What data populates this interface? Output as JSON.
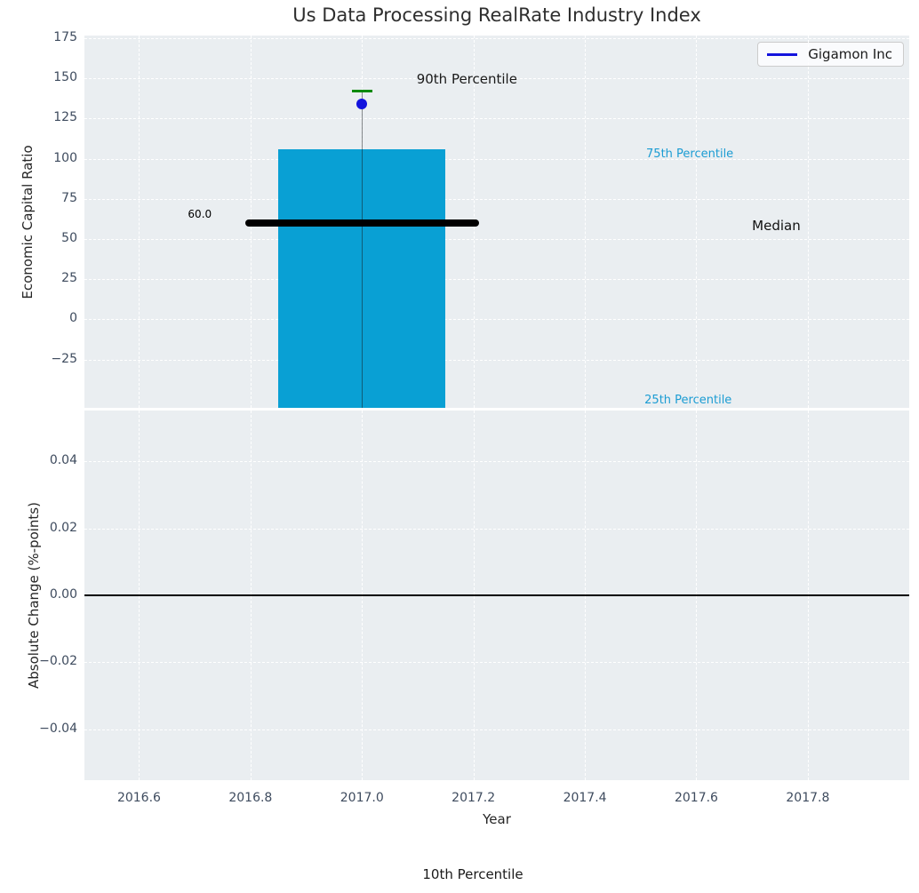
{
  "title": "Us Data Processing RealRate Industry Index",
  "caption": "10th Percentile",
  "legend": {
    "label": "Gigamon Inc",
    "line_color": "#1313dd"
  },
  "colors": {
    "axes_bg": "#eaeef1",
    "grid": "#ffffff",
    "bar": "#09a0d4",
    "percentile_label": "#1b9cd3",
    "cap_green": "#0a8a0a",
    "company_blue": "#1313dd",
    "median_line": "#000000",
    "tick": "#3e4b5e",
    "stem": "rgba(20,25,30,0.5)",
    "zero_line": "#000000"
  },
  "chart_data": {
    "type": "boxplot",
    "x": {
      "label": "Year",
      "lim": [
        2016.502,
        2017.982
      ],
      "tick_values": [
        2016.6,
        2016.8,
        2017.0,
        2017.2,
        2017.4,
        2017.6,
        2017.8
      ],
      "tick_labels": [
        "2016.6",
        "2016.8",
        "2017.0",
        "2017.2",
        "2017.4",
        "2017.6",
        "2017.8"
      ]
    },
    "top": {
      "ylabel": "Economic Capital Ratio",
      "ylim": [
        -55.1,
        176.7
      ],
      "tick_values": [
        175,
        150,
        125,
        100,
        75,
        50,
        25,
        0,
        -25
      ],
      "tick_labels": [
        "175",
        "150",
        "125",
        "100",
        "75",
        "50",
        "25",
        "0",
        "−25"
      ],
      "box": {
        "x": 2017.0,
        "bar_width": 0.3,
        "p90": 142,
        "p75": 106,
        "median": 60,
        "median_label": "60.0",
        "median_line_x": [
          2016.79,
          2017.21
        ],
        "cap_x": [
          2016.982,
          2017.018
        ],
        "p25_clipped_below_axis": true,
        "company": {
          "name": "Gigamon Inc",
          "value": 134
        }
      },
      "annotations": [
        {
          "text": "60.0",
          "x": 2016.709,
          "y": 65.5,
          "size": 12,
          "color": "#000000",
          "align": "center"
        },
        {
          "text": "90th Percentile",
          "x": 2017.098,
          "y": 149.5,
          "size": 15,
          "color": "#1a1a1a",
          "align": "left"
        },
        {
          "text": "75th Percentile",
          "x": 2017.51,
          "y": 102.5,
          "size": 13,
          "color": "#1b9cd3",
          "align": "left"
        },
        {
          "text": "Median",
          "x": 2017.7,
          "y": 58.3,
          "size": 15,
          "color": "#111111",
          "align": "left"
        },
        {
          "text": "25th Percentile",
          "x": 2017.507,
          "y": -50.5,
          "size": 13,
          "color": "#1b9cd3",
          "align": "left"
        }
      ]
    },
    "bottom": {
      "ylabel": "Absolute Change (%-points)",
      "ylim": [
        -0.0551,
        0.0551
      ],
      "tick_values": [
        0.04,
        0.02,
        0,
        -0.02,
        -0.04
      ],
      "tick_labels": [
        "0.04",
        "0.02",
        "0.00",
        "−0.02",
        "−0.04"
      ],
      "zero_line": 0
    }
  }
}
